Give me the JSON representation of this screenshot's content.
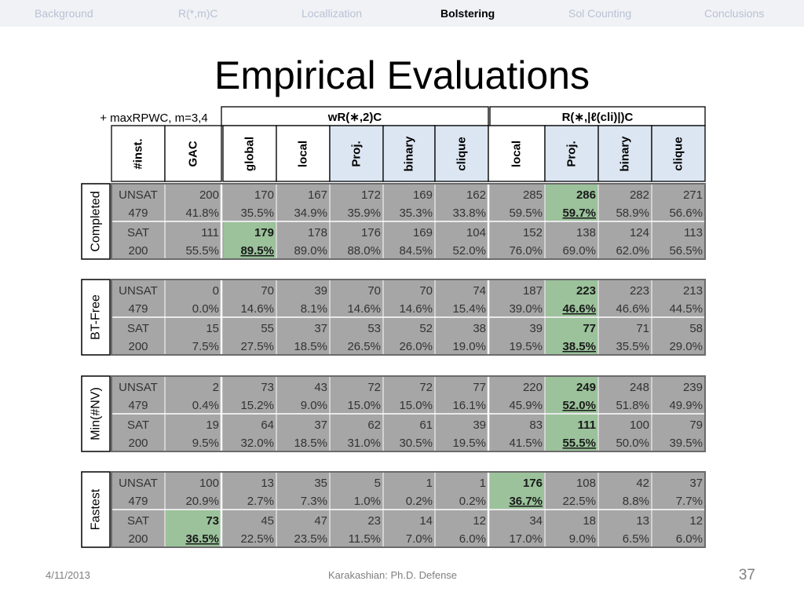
{
  "nav": [
    {
      "label": "Background",
      "active": false
    },
    {
      "label": "R(*,m)C",
      "active": false
    },
    {
      "label": "Locallization",
      "active": false
    },
    {
      "label": "Bolstering",
      "active": true
    },
    {
      "label": "Sol Counting",
      "active": false
    },
    {
      "label": "Conclusions",
      "active": false
    }
  ],
  "title": "Empirical Evaluations",
  "table": {
    "corner_label": "+ maxRPWC, m=3,4",
    "group1": "wR(∗,2)C",
    "group2": "R(∗,|ℓ(cli)|)C",
    "columns": [
      "#inst.",
      "GAC",
      "global",
      "local",
      "Proj.",
      "binary",
      "clique",
      "local",
      "Proj.",
      "binary",
      "clique"
    ],
    "colors": {
      "shade": "#a6a6a6",
      "highlight": "#9bc29b",
      "header_blue": "#dce6f2",
      "border": "#000000"
    },
    "blocks": [
      {
        "label": "Completed",
        "rows": [
          {
            "status": "UNSAT",
            "count": "479",
            "values": [
              "200",
              "170",
              "167",
              "172",
              "169",
              "162",
              "285",
              "286",
              "282",
              "271"
            ],
            "pcts": [
              "41.8%",
              "35.5%",
              "34.9%",
              "35.9%",
              "35.3%",
              "33.8%",
              "59.5%",
              "59.7%",
              "58.9%",
              "56.6%"
            ],
            "best": [
              7
            ]
          },
          {
            "status": "SAT",
            "count": "200",
            "values": [
              "111",
              "179",
              "178",
              "176",
              "169",
              "104",
              "152",
              "138",
              "124",
              "113"
            ],
            "pcts": [
              "55.5%",
              "89.5%",
              "89.0%",
              "88.0%",
              "84.5%",
              "52.0%",
              "76.0%",
              "69.0%",
              "62.0%",
              "56.5%"
            ],
            "best": [
              1
            ]
          }
        ]
      },
      {
        "label": "BT-Free",
        "rows": [
          {
            "status": "UNSAT",
            "count": "479",
            "values": [
              "0",
              "70",
              "39",
              "70",
              "70",
              "74",
              "187",
              "223",
              "223",
              "213"
            ],
            "pcts": [
              "0.0%",
              "14.6%",
              "8.1%",
              "14.6%",
              "14.6%",
              "15.4%",
              "39.0%",
              "46.6%",
              "46.6%",
              "44.5%"
            ],
            "best": [
              7
            ]
          },
          {
            "status": "SAT",
            "count": "200",
            "values": [
              "15",
              "55",
              "37",
              "53",
              "52",
              "38",
              "39",
              "77",
              "71",
              "58"
            ],
            "pcts": [
              "7.5%",
              "27.5%",
              "18.5%",
              "26.5%",
              "26.0%",
              "19.0%",
              "19.5%",
              "38.5%",
              "35.5%",
              "29.0%"
            ],
            "best": [
              7
            ]
          }
        ]
      },
      {
        "label": "Min(#NV)",
        "rows": [
          {
            "status": "UNSAT",
            "count": "479",
            "values": [
              "2",
              "73",
              "43",
              "72",
              "72",
              "77",
              "220",
              "249",
              "248",
              "239"
            ],
            "pcts": [
              "0.4%",
              "15.2%",
              "9.0%",
              "15.0%",
              "15.0%",
              "16.1%",
              "45.9%",
              "52.0%",
              "51.8%",
              "49.9%"
            ],
            "best": [
              7
            ]
          },
          {
            "status": "SAT",
            "count": "200",
            "values": [
              "19",
              "64",
              "37",
              "62",
              "61",
              "39",
              "83",
              "111",
              "100",
              "79"
            ],
            "pcts": [
              "9.5%",
              "32.0%",
              "18.5%",
              "31.0%",
              "30.5%",
              "19.5%",
              "41.5%",
              "55.5%",
              "50.0%",
              "39.5%"
            ],
            "best": [
              7
            ]
          }
        ]
      },
      {
        "label": "Fastest",
        "rows": [
          {
            "status": "UNSAT",
            "count": "479",
            "values": [
              "100",
              "13",
              "35",
              "5",
              "1",
              "1",
              "176",
              "108",
              "42",
              "37"
            ],
            "pcts": [
              "20.9%",
              "2.7%",
              "7.3%",
              "1.0%",
              "0.2%",
              "0.2%",
              "36.7%",
              "22.5%",
              "8.8%",
              "7.7%"
            ],
            "best": [
              6
            ]
          },
          {
            "status": "SAT",
            "count": "200",
            "values": [
              "73",
              "45",
              "47",
              "23",
              "14",
              "12",
              "34",
              "18",
              "13",
              "12"
            ],
            "pcts": [
              "36.5%",
              "22.5%",
              "23.5%",
              "11.5%",
              "7.0%",
              "6.0%",
              "17.0%",
              "9.0%",
              "6.5%",
              "6.0%"
            ],
            "best": [
              0
            ]
          }
        ]
      }
    ]
  },
  "footer": {
    "date": "4/11/2013",
    "center": "Karakashian: Ph.D. Defense",
    "page": "37"
  }
}
